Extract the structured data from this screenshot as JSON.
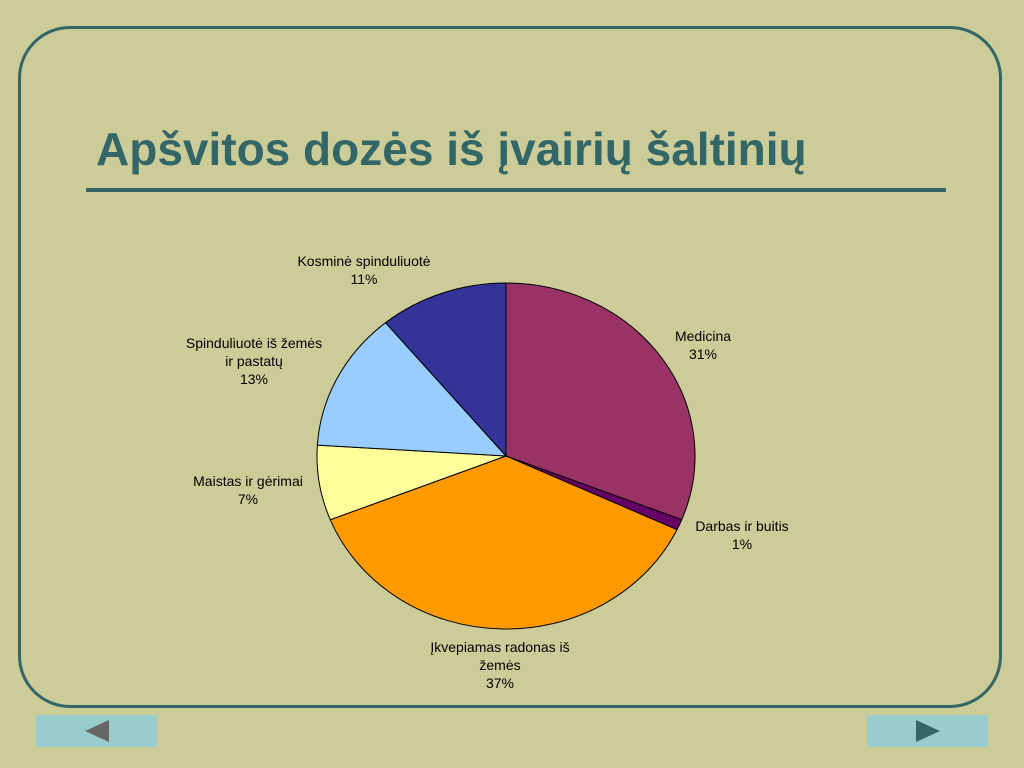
{
  "slide": {
    "title": "Apšvitos dozės iš įvairių šaltinių"
  },
  "chart_data": {
    "type": "pie",
    "title": "",
    "slices": [
      {
        "category": "Medicina",
        "lines": [
          "Medicina"
        ],
        "value": 31,
        "percent_label": "31%",
        "color": "#993366"
      },
      {
        "category": "Darbas ir buitis",
        "lines": [
          "Darbas ir buitis"
        ],
        "value": 1,
        "percent_label": "1%",
        "color": "#660066"
      },
      {
        "category": "Įkvepiamas radonas iš žemės",
        "lines": [
          "Įkvepiamas radonas iš",
          "žemės"
        ],
        "value": 37,
        "percent_label": "37%",
        "color": "#ff9900"
      },
      {
        "category": "Maistas ir gėrimai",
        "lines": [
          "Maistas ir gėrimai"
        ],
        "value": 7,
        "percent_label": "7%",
        "color": "#ffff99"
      },
      {
        "category": "Spinduliuotė iš žemės ir pastatų",
        "lines": [
          "Spinduliuotė iš žemės",
          "ir pastatų"
        ],
        "value": 13,
        "percent_label": "13%",
        "color": "#99ccff"
      },
      {
        "category": "Kosminė spinduliuotė",
        "lines": [
          "Kosminė spinduliuotė"
        ],
        "value": 11,
        "percent_label": "11%",
        "color": "#333399"
      }
    ],
    "start_angle": "12 o'clock",
    "direction": "clockwise",
    "legend": "none",
    "data_labels": "category and percent"
  },
  "nav": {
    "prev_icon": "arrow-left-icon",
    "next_icon": "arrow-right-icon"
  }
}
